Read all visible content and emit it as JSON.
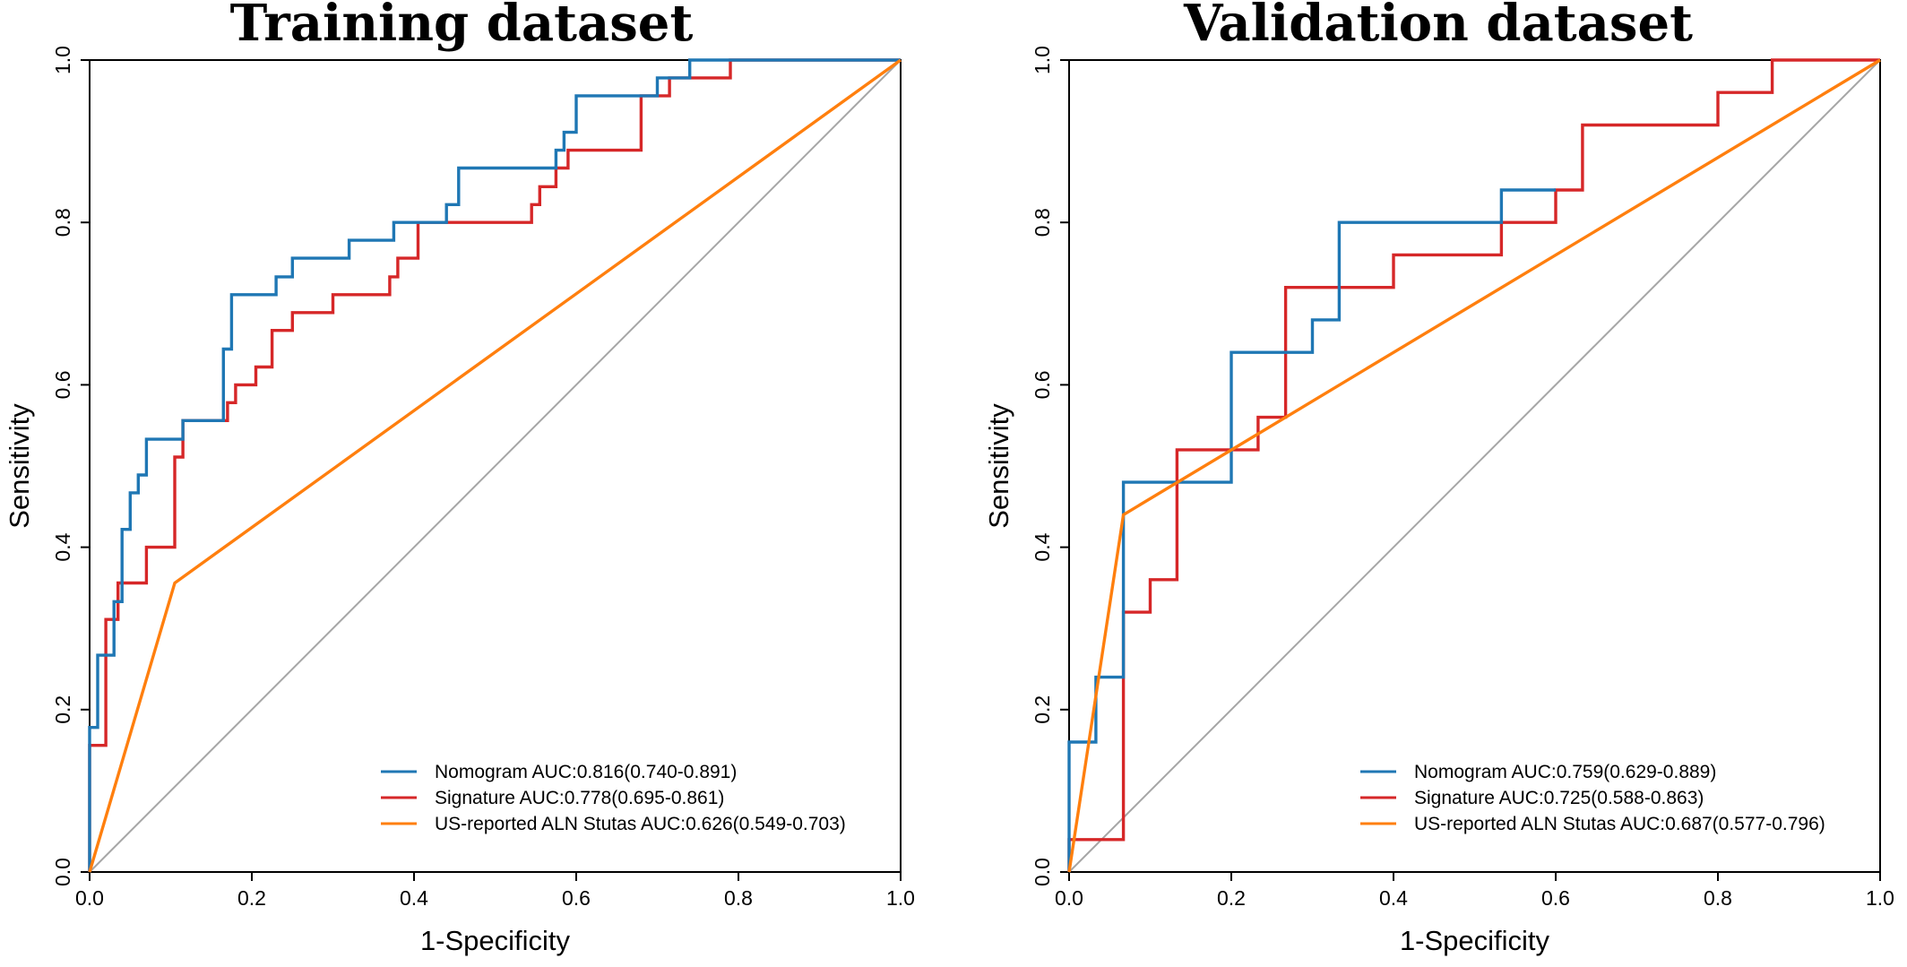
{
  "chart_data": [
    {
      "type": "line",
      "title": "Training dataset",
      "xlabel": "1-Specificity",
      "ylabel": "Sensitivity",
      "xlim": [
        0,
        1
      ],
      "ylim": [
        0,
        1
      ],
      "x_ticks": [
        "0.0",
        "0.2",
        "0.4",
        "0.6",
        "0.8",
        "1.0"
      ],
      "y_ticks": [
        "0.0",
        "0.2",
        "0.4",
        "0.6",
        "0.8",
        "1.0"
      ],
      "grid": false,
      "legend_position": "bottom-right",
      "reference_line": {
        "color": "#a6a6a6",
        "points": [
          [
            0,
            0
          ],
          [
            1,
            1
          ]
        ]
      },
      "series": [
        {
          "name": "Nomogram AUC:0.816(0.740-0.891)",
          "color": "#1f77b4",
          "points": [
            [
              0,
              0
            ],
            [
              0,
              0.178
            ],
            [
              0.01,
              0.178
            ],
            [
              0.01,
              0.267
            ],
            [
              0.03,
              0.267
            ],
            [
              0.03,
              0.333
            ],
            [
              0.04,
              0.333
            ],
            [
              0.04,
              0.422
            ],
            [
              0.05,
              0.422
            ],
            [
              0.05,
              0.467
            ],
            [
              0.06,
              0.467
            ],
            [
              0.06,
              0.489
            ],
            [
              0.07,
              0.489
            ],
            [
              0.07,
              0.533
            ],
            [
              0.115,
              0.533
            ],
            [
              0.115,
              0.556
            ],
            [
              0.165,
              0.556
            ],
            [
              0.165,
              0.644
            ],
            [
              0.175,
              0.644
            ],
            [
              0.175,
              0.711
            ],
            [
              0.23,
              0.711
            ],
            [
              0.23,
              0.733
            ],
            [
              0.25,
              0.733
            ],
            [
              0.25,
              0.756
            ],
            [
              0.32,
              0.756
            ],
            [
              0.32,
              0.778
            ],
            [
              0.375,
              0.778
            ],
            [
              0.375,
              0.8
            ],
            [
              0.44,
              0.8
            ],
            [
              0.44,
              0.822
            ],
            [
              0.455,
              0.822
            ],
            [
              0.455,
              0.867
            ],
            [
              0.575,
              0.867
            ],
            [
              0.575,
              0.889
            ],
            [
              0.585,
              0.889
            ],
            [
              0.585,
              0.911
            ],
            [
              0.6,
              0.911
            ],
            [
              0.6,
              0.956
            ],
            [
              0.7,
              0.956
            ],
            [
              0.7,
              0.978
            ],
            [
              0.74,
              0.978
            ],
            [
              0.74,
              1.0
            ],
            [
              1.0,
              1.0
            ]
          ]
        },
        {
          "name": "Signature AUC:0.778(0.695-0.861)",
          "color": "#d62728",
          "points": [
            [
              0,
              0
            ],
            [
              0,
              0.156
            ],
            [
              0.02,
              0.156
            ],
            [
              0.02,
              0.311
            ],
            [
              0.035,
              0.311
            ],
            [
              0.035,
              0.356
            ],
            [
              0.07,
              0.356
            ],
            [
              0.07,
              0.4
            ],
            [
              0.105,
              0.4
            ],
            [
              0.105,
              0.511
            ],
            [
              0.115,
              0.511
            ],
            [
              0.115,
              0.556
            ],
            [
              0.17,
              0.556
            ],
            [
              0.17,
              0.578
            ],
            [
              0.18,
              0.578
            ],
            [
              0.18,
              0.6
            ],
            [
              0.205,
              0.6
            ],
            [
              0.205,
              0.622
            ],
            [
              0.225,
              0.622
            ],
            [
              0.225,
              0.667
            ],
            [
              0.25,
              0.667
            ],
            [
              0.25,
              0.689
            ],
            [
              0.3,
              0.689
            ],
            [
              0.3,
              0.711
            ],
            [
              0.37,
              0.711
            ],
            [
              0.37,
              0.733
            ],
            [
              0.38,
              0.733
            ],
            [
              0.38,
              0.756
            ],
            [
              0.405,
              0.756
            ],
            [
              0.405,
              0.8
            ],
            [
              0.545,
              0.8
            ],
            [
              0.545,
              0.822
            ],
            [
              0.555,
              0.822
            ],
            [
              0.555,
              0.844
            ],
            [
              0.575,
              0.844
            ],
            [
              0.575,
              0.867
            ],
            [
              0.59,
              0.867
            ],
            [
              0.59,
              0.889
            ],
            [
              0.68,
              0.889
            ],
            [
              0.68,
              0.956
            ],
            [
              0.715,
              0.956
            ],
            [
              0.715,
              0.978
            ],
            [
              0.79,
              0.978
            ],
            [
              0.79,
              1.0
            ],
            [
              1.0,
              1.0
            ]
          ]
        },
        {
          "name": "US-reported ALN Stutas AUC:0.626(0.549-0.703)",
          "color": "#ff7f0e",
          "points": [
            [
              0,
              0
            ],
            [
              0.105,
              0.356
            ],
            [
              1.0,
              1.0
            ]
          ]
        }
      ]
    },
    {
      "type": "line",
      "title": "Validation dataset",
      "xlabel": "1-Specificity",
      "ylabel": "Sensitivity",
      "xlim": [
        0,
        1
      ],
      "ylim": [
        0,
        1
      ],
      "x_ticks": [
        "0.0",
        "0.2",
        "0.4",
        "0.6",
        "0.8",
        "1.0"
      ],
      "y_ticks": [
        "0.0",
        "0.2",
        "0.4",
        "0.6",
        "0.8",
        "1.0"
      ],
      "grid": false,
      "legend_position": "bottom-right",
      "reference_line": {
        "color": "#a6a6a6",
        "points": [
          [
            0,
            0
          ],
          [
            1,
            1
          ]
        ]
      },
      "series": [
        {
          "name": "Nomogram AUC:0.759(0.629-0.889)",
          "color": "#1f77b4",
          "points": [
            [
              0,
              0
            ],
            [
              0,
              0.16
            ],
            [
              0.033,
              0.16
            ],
            [
              0.033,
              0.24
            ],
            [
              0.067,
              0.24
            ],
            [
              0.067,
              0.48
            ],
            [
              0.2,
              0.48
            ],
            [
              0.2,
              0.64
            ],
            [
              0.267,
              0.64
            ],
            [
              0.3,
              0.64
            ],
            [
              0.3,
              0.68
            ],
            [
              0.333,
              0.68
            ],
            [
              0.333,
              0.8
            ],
            [
              0.533,
              0.8
            ],
            [
              0.533,
              0.84
            ],
            [
              0.6,
              0.84
            ],
            [
              0.6,
              0.84
            ]
          ]
        },
        {
          "name": "Signature AUC:0.725(0.588-0.863)",
          "color": "#d62728",
          "points": [
            [
              0,
              0
            ],
            [
              0,
              0.04
            ],
            [
              0.067,
              0.04
            ],
            [
              0.067,
              0.32
            ],
            [
              0.1,
              0.32
            ],
            [
              0.1,
              0.36
            ],
            [
              0.133,
              0.36
            ],
            [
              0.133,
              0.52
            ],
            [
              0.233,
              0.52
            ],
            [
              0.233,
              0.56
            ],
            [
              0.267,
              0.56
            ],
            [
              0.267,
              0.72
            ],
            [
              0.4,
              0.72
            ],
            [
              0.4,
              0.76
            ],
            [
              0.533,
              0.76
            ],
            [
              0.533,
              0.8
            ],
            [
              0.6,
              0.8
            ],
            [
              0.6,
              0.84
            ],
            [
              0.633,
              0.84
            ],
            [
              0.633,
              0.92
            ],
            [
              0.8,
              0.92
            ],
            [
              0.8,
              0.96
            ],
            [
              0.867,
              0.96
            ],
            [
              0.867,
              1.0
            ],
            [
              1.0,
              1.0
            ]
          ]
        },
        {
          "name": "US-reported ALN Stutas AUC:0.687(0.577-0.796)",
          "color": "#ff7f0e",
          "points": [
            [
              0,
              0
            ],
            [
              0.067,
              0.44
            ],
            [
              1.0,
              1.0
            ]
          ]
        }
      ]
    }
  ]
}
